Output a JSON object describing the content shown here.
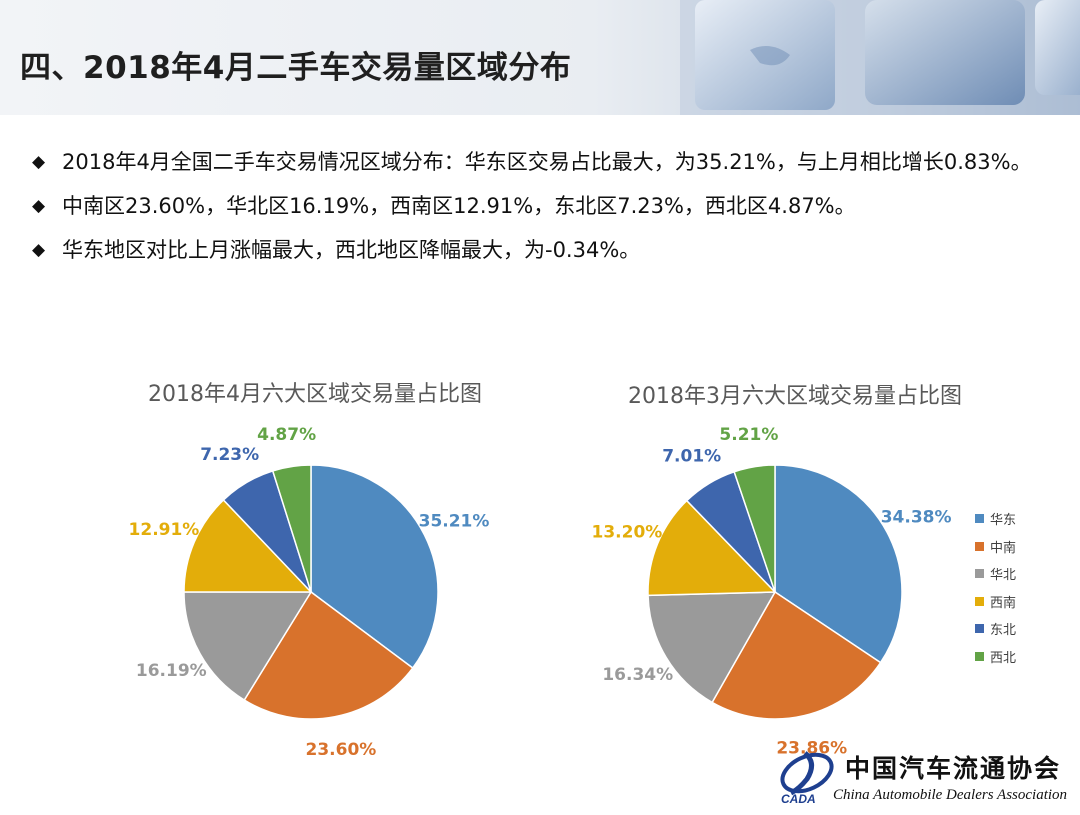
{
  "header": {
    "title": "四、2018年4月二手车交易量区域分布"
  },
  "bullets": [
    {
      "text": "2018年4月全国二手车交易情况区域分布：华东区交易占比最大，为35.21%，与上月相比增长0.83%。"
    },
    {
      "text": "中南区23.60%，华北区16.19%，西南区12.91%，东北区7.23%，西北区4.87%。"
    },
    {
      "text": "华东地区对比上月涨幅最大，西北地区降幅最大，为-0.34%。"
    }
  ],
  "colors": {
    "华东": "#4f8ac0",
    "中南": "#d8722c",
    "华北": "#9a9a9a",
    "西南": "#e3ad0a",
    "东北": "#3e66ad",
    "西北": "#62a346"
  },
  "legend": [
    "华东",
    "中南",
    "华北",
    "西南",
    "东北",
    "西北"
  ],
  "chart_data": [
    {
      "type": "pie",
      "title": "2018年4月六大区域交易量占比图",
      "categories": [
        "华东",
        "中南",
        "华北",
        "西南",
        "东北",
        "西北"
      ],
      "values": [
        35.21,
        23.6,
        16.19,
        12.91,
        7.23,
        4.87
      ],
      "labels": [
        "35.21%",
        "23.60%",
        "16.19%",
        "12.91%",
        "7.23%",
        "4.87%"
      ]
    },
    {
      "type": "pie",
      "title": "2018年3月六大区域交易量占比图",
      "categories": [
        "华东",
        "中南",
        "华北",
        "西南",
        "东北",
        "西北"
      ],
      "values": [
        34.38,
        23.86,
        16.34,
        13.2,
        7.01,
        5.21
      ],
      "labels": [
        "34.38%",
        "23.86%",
        "16.34%",
        "13.20%",
        "7.01%",
        "5.21%"
      ]
    }
  ],
  "logo": {
    "name_cn": "中国汽车流通协会",
    "name_en": "China Automobile Dealers Association",
    "mark_text": "CADA"
  }
}
